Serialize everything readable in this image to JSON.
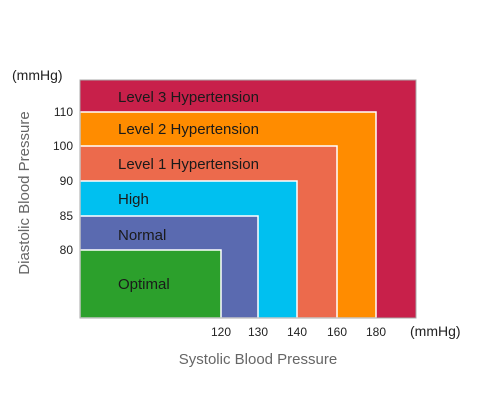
{
  "chart_data": {
    "type": "area",
    "title": "",
    "xlabel": "Systolic Blood Pressure",
    "ylabel": "Diastolic Blood Pressure",
    "x_unit": "(mmHg)",
    "y_unit": "(mmHg)",
    "x_ticks": [
      "120",
      "130",
      "140",
      "160",
      "180"
    ],
    "y_ticks": [
      "80",
      "85",
      "90",
      "100",
      "110"
    ],
    "zones": [
      {
        "name": "Level 3 Hypertension",
        "systolic_max": null,
        "diastolic_max": null,
        "color": "#c8204a"
      },
      {
        "name": "Level 2 Hypertension",
        "systolic_max": 180,
        "diastolic_max": 110,
        "color": "#ff8c00"
      },
      {
        "name": "Level 1 Hypertension",
        "systolic_max": 160,
        "diastolic_max": 100,
        "color": "#ec6a4c"
      },
      {
        "name": "High",
        "systolic_max": 140,
        "diastolic_max": 90,
        "color": "#00c0f0"
      },
      {
        "name": "Normal",
        "systolic_max": 130,
        "diastolic_max": 85,
        "color": "#5a6ab0"
      },
      {
        "name": "Optimal",
        "systolic_max": 120,
        "diastolic_max": 80,
        "color": "#2ca02c"
      }
    ],
    "grid": false,
    "legend": "none"
  }
}
